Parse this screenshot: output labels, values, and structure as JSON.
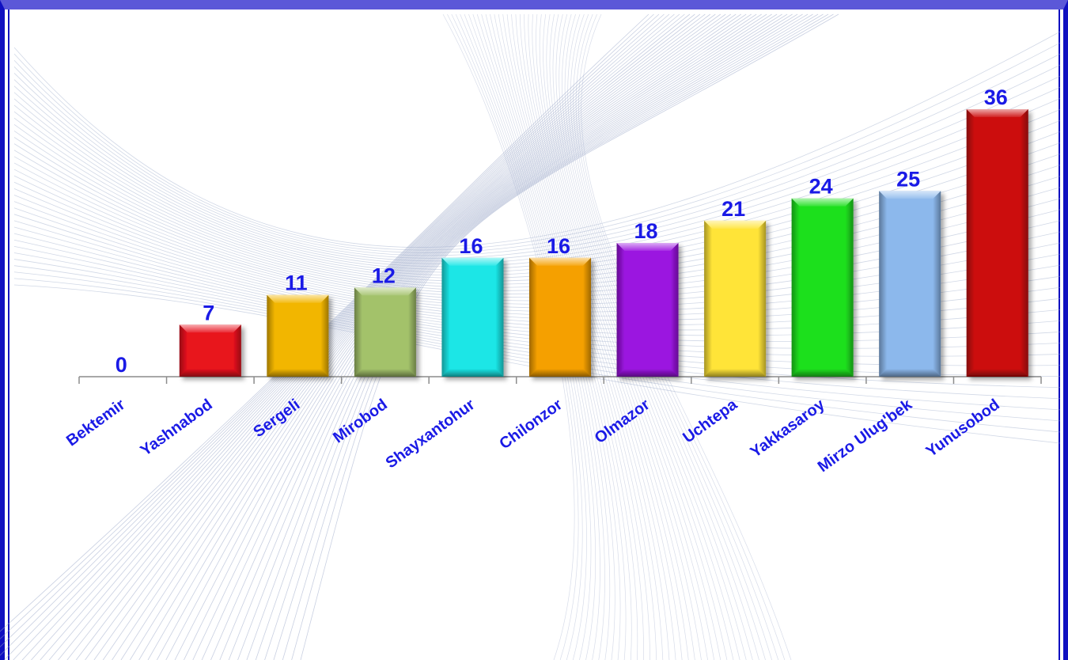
{
  "colors": {
    "frame_top": "#5b58d8",
    "frame_side": "#1010c0",
    "label_text": "#1a1ae6",
    "axis": "#8c8c8c",
    "background_pattern": "#9aa8c8"
  },
  "chart_data": {
    "type": "bar",
    "title": "",
    "xlabel": "",
    "ylabel": "",
    "ylim": [
      0,
      36
    ],
    "grid": false,
    "legend": "none",
    "categories": [
      "Bektemir",
      "Yashnabod",
      "Sergeli",
      "Mirobod",
      "Shayxantohur",
      "Chilonzor",
      "Olmazor",
      "Uchtepa",
      "Yakkasaroy",
      "Mirzo Ulug'bek",
      "Yunusobod"
    ],
    "values": [
      0,
      7,
      11,
      12,
      16,
      16,
      18,
      21,
      24,
      25,
      36
    ],
    "value_labels": [
      "0",
      "7",
      "11",
      "12",
      "16",
      "16",
      "18",
      "21",
      "24",
      "25",
      "36"
    ],
    "bar_colors": [
      "#cccccc",
      "#e8121e",
      "#f2b600",
      "#a3c26b",
      "#1ae6e6",
      "#f5a000",
      "#9b14e0",
      "#ffe438",
      "#1fe01f",
      "#8cb8ec",
      "#cc0a0a"
    ]
  }
}
